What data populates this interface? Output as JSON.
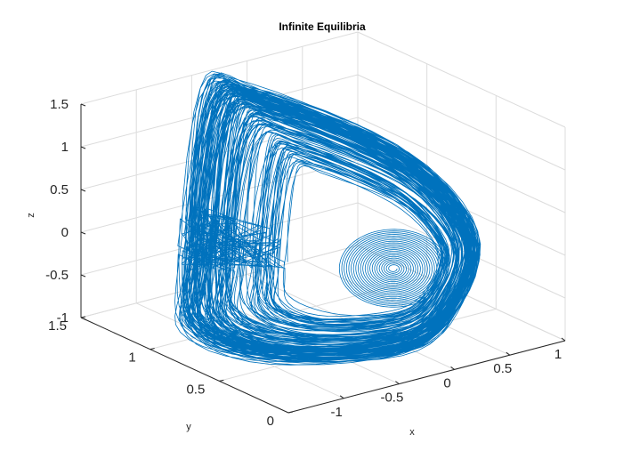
{
  "chart_data": {
    "type": "line3d",
    "title": "Infinite Equilibria",
    "xlabel": "x",
    "ylabel": "y",
    "zlabel": "z",
    "xlim": [
      -1.5,
      1
    ],
    "ylim": [
      0,
      1.5
    ],
    "zlim": [
      -1,
      1.5
    ],
    "x_ticks": [
      "-1",
      "-0.5",
      "0",
      "0.5",
      "1"
    ],
    "y_ticks": [
      "0",
      "0.5",
      "1",
      "1.5"
    ],
    "z_ticks": [
      "-1",
      "-0.5",
      "0",
      "0.5",
      "1",
      "1.5"
    ],
    "grid": true,
    "box": "back-planes",
    "line_color": "#0072bd",
    "series": [
      {
        "description": "chaotic attractor trajectory spiralling outward from an inner focus near (x≈0.3, y≈0.9, z≈-0.3) into a large twisted loop",
        "sample_points": [
          {
            "x": 0.3,
            "y": 0.95,
            "z": -0.3
          },
          {
            "x": -0.6,
            "y": 1.3,
            "z": 1.4
          },
          {
            "x": -1.1,
            "y": 0.6,
            "z": -0.7
          },
          {
            "x": 0.1,
            "y": 0.2,
            "z": -0.9
          },
          {
            "x": 0.6,
            "y": 0.6,
            "z": 0.3
          },
          {
            "x": 0.4,
            "y": 1.1,
            "z": 0.2
          }
        ]
      }
    ]
  }
}
